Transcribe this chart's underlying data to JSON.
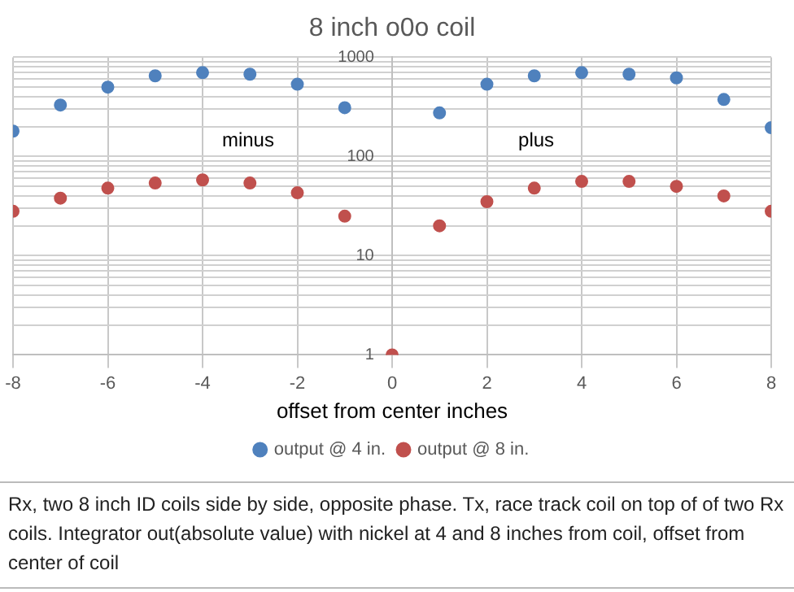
{
  "chart_data": {
    "type": "scatter",
    "title": "8 inch o0o coil",
    "xlabel": "offset from center inches",
    "x": [
      -8,
      -7,
      -6,
      -5,
      -4,
      -3,
      -2,
      -1,
      0,
      1,
      2,
      3,
      4,
      5,
      6,
      7,
      8
    ],
    "series": [
      {
        "name": "output @ 4 in.",
        "color": "#4f81bd",
        "values": [
          180,
          330,
          500,
          650,
          700,
          675,
          535,
          310,
          null,
          275,
          535,
          650,
          700,
          675,
          620,
          375,
          195
        ]
      },
      {
        "name": "output @ 8 in.",
        "color": "#c0504d",
        "values": [
          28,
          38,
          48,
          54,
          58,
          54,
          43,
          25,
          1,
          20,
          35,
          48,
          56,
          56,
          50,
          40,
          28
        ]
      }
    ],
    "xlim": [
      -8,
      8
    ],
    "xticks": [
      -8,
      -6,
      -4,
      -2,
      0,
      2,
      4,
      6,
      8
    ],
    "ylim": [
      1,
      1000
    ],
    "yticks": [
      1,
      {
        "value": 2,
        "label": null
      },
      {
        "value": 3,
        "label": null
      },
      {
        "value": 4,
        "label": null
      },
      {
        "value": 5,
        "label": null
      },
      {
        "value": 6,
        "label": null
      },
      {
        "value": 7,
        "label": null
      },
      {
        "value": 8,
        "label": null
      },
      {
        "value": 9,
        "label": null
      },
      10,
      {
        "value": 20,
        "label": null
      },
      {
        "value": 30,
        "label": null
      },
      {
        "value": 40,
        "label": null
      },
      {
        "value": 50,
        "label": null
      },
      {
        "value": 60,
        "label": null
      },
      {
        "value": 70,
        "label": null
      },
      {
        "value": 80,
        "label": null
      },
      {
        "value": 90,
        "label": null
      },
      100,
      {
        "value": 200,
        "label": null
      },
      {
        "value": 300,
        "label": null
      },
      {
        "value": 400,
        "label": null
      },
      {
        "value": 500,
        "label": null
      },
      {
        "value": 600,
        "label": null
      },
      {
        "value": 700,
        "label": null
      },
      {
        "value": 800,
        "label": null
      },
      {
        "value": 900,
        "label": null
      },
      1000
    ],
    "log": "y",
    "grid": true,
    "legend": "bottom",
    "marker": "circle",
    "annotations": [
      "minus",
      "plus",
      "Rx, two 8 inch ID coils side by side, opposite phase.  Tx, race track coil on top of of two Rx coils. Integrator out(absolute value) with nickel at 4 and 8 inches from coil, offset from center of coil"
    ]
  }
}
